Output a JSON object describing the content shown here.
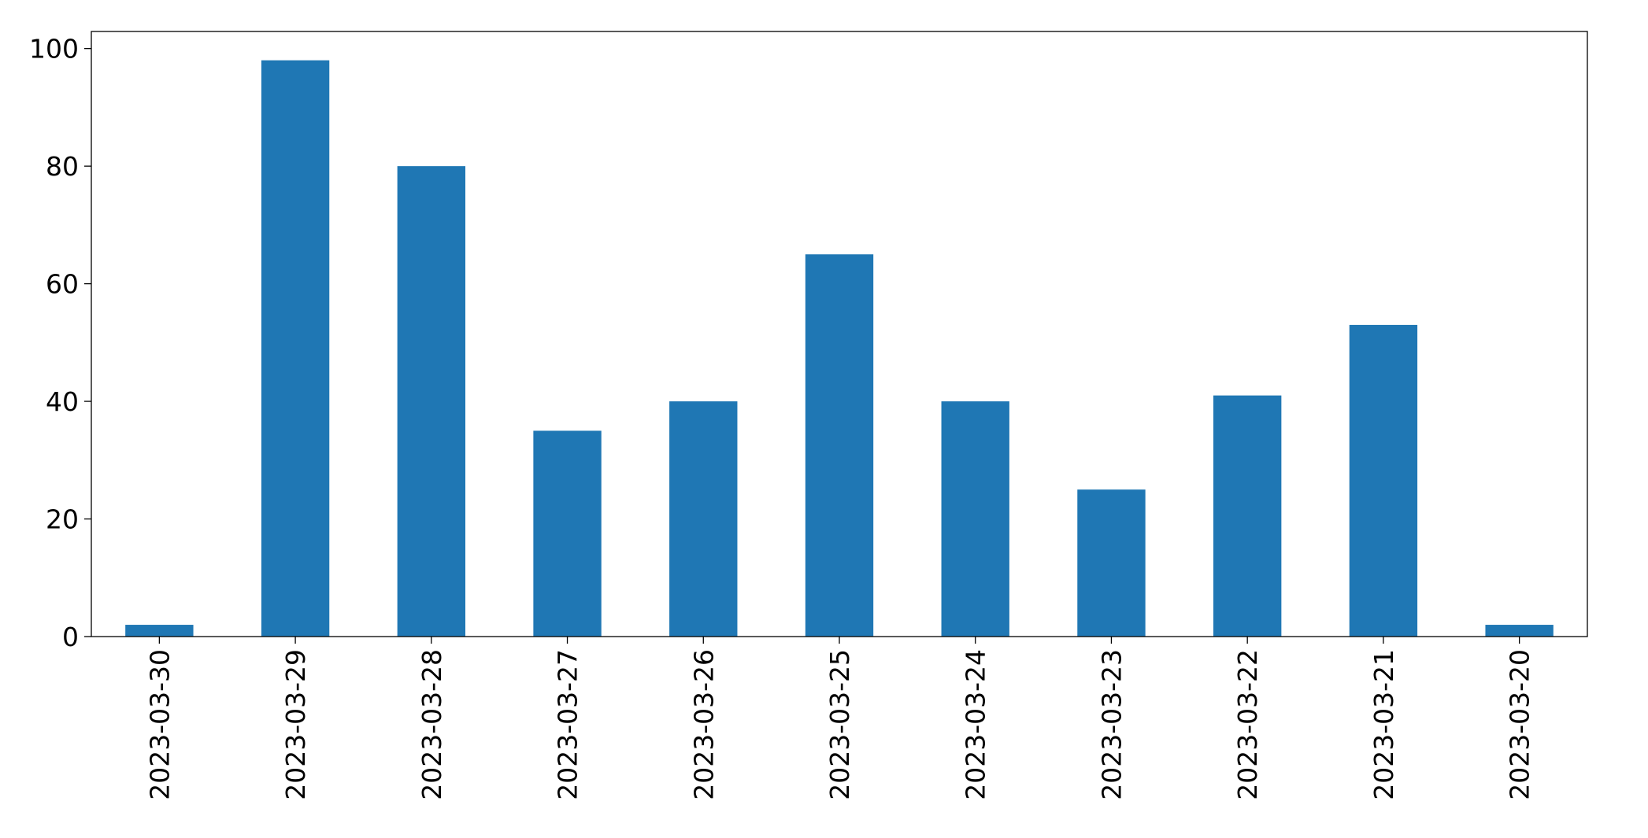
{
  "chart_data": {
    "type": "bar",
    "categories": [
      "2023-03-30",
      "2023-03-29",
      "2023-03-28",
      "2023-03-27",
      "2023-03-26",
      "2023-03-25",
      "2023-03-24",
      "2023-03-23",
      "2023-03-22",
      "2023-03-21",
      "2023-03-20"
    ],
    "values": [
      2,
      98,
      80,
      35,
      40,
      65,
      40,
      25,
      41,
      53,
      2
    ],
    "color": "#1f77b4",
    "ylim": [
      0,
      102.9
    ],
    "yticks": [
      0,
      20,
      40,
      60,
      80,
      100
    ],
    "grid": false
  }
}
